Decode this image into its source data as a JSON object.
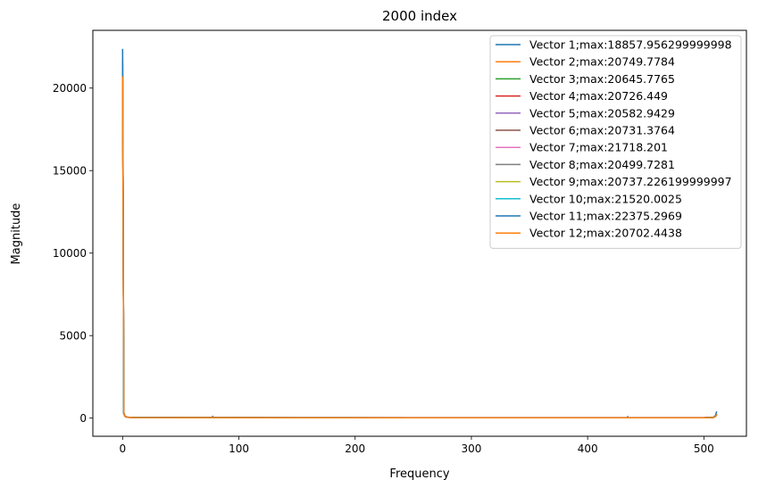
{
  "chart_data": {
    "type": "line",
    "title": "2000 index",
    "xlabel": "Frequency",
    "ylabel": "Magnitude",
    "xlim": [
      -25.6,
      536.6
    ],
    "ylim": [
      -1100,
      23500
    ],
    "x_ticks": [
      0,
      100,
      200,
      300,
      400,
      500
    ],
    "y_ticks": [
      0,
      5000,
      10000,
      15000,
      20000
    ],
    "grid": false,
    "legend_position": "top-right",
    "x": [
      0,
      0.5,
      1,
      2,
      3,
      5,
      10,
      50,
      77,
      77.5,
      78,
      150,
      250,
      350,
      434,
      434.5,
      435,
      500,
      508,
      510,
      511
    ],
    "series": [
      {
        "name": "Vector 1;max:18857.956299999998",
        "color": "#1f77b4",
        "values": [
          18857,
          12000,
          300,
          120,
          70,
          50,
          40,
          30,
          30,
          90,
          30,
          28,
          25,
          25,
          25,
          80,
          25,
          25,
          40,
          120,
          250
        ]
      },
      {
        "name": "Vector 2;max:20749.7784",
        "color": "#ff7f0e",
        "values": [
          20749,
          11800,
          280,
          115,
          68,
          48,
          38,
          28,
          28,
          70,
          28,
          26,
          24,
          24,
          24,
          60,
          24,
          24,
          38,
          110,
          230
        ]
      },
      {
        "name": "Vector 3;max:20645.7765",
        "color": "#2ca02c",
        "values": [
          20645,
          11700,
          270,
          110,
          66,
          47,
          37,
          27,
          27,
          60,
          27,
          25,
          23,
          23,
          23,
          55,
          23,
          23,
          36,
          100,
          220
        ]
      },
      {
        "name": "Vector 4;max:20726.449",
        "color": "#d62728",
        "values": [
          20726,
          11750,
          275,
          112,
          67,
          47,
          37,
          27,
          27,
          65,
          27,
          25,
          23,
          23,
          23,
          58,
          23,
          23,
          37,
          105,
          225
        ]
      },
      {
        "name": "Vector 5;max:20582.9429",
        "color": "#9467bd",
        "values": [
          20582,
          11650,
          268,
          108,
          65,
          46,
          36,
          26,
          26,
          62,
          26,
          24,
          22,
          22,
          22,
          54,
          22,
          22,
          35,
          98,
          215
        ]
      },
      {
        "name": "Vector 6;max:20731.3764",
        "color": "#8c564b",
        "values": [
          20731,
          11760,
          276,
          113,
          67,
          47,
          37,
          27,
          27,
          66,
          27,
          25,
          23,
          23,
          23,
          57,
          23,
          23,
          37,
          104,
          224
        ]
      },
      {
        "name": "Vector 7;max:21718.201",
        "color": "#e377c2",
        "values": [
          21718,
          12300,
          310,
          125,
          72,
          52,
          41,
          31,
          31,
          95,
          31,
          29,
          26,
          26,
          26,
          85,
          26,
          26,
          42,
          125,
          260
        ]
      },
      {
        "name": "Vector 8;max:20499.7281",
        "color": "#7f7f7f",
        "values": [
          20499,
          11600,
          265,
          107,
          64,
          45,
          35,
          25,
          25,
          60,
          25,
          23,
          21,
          21,
          21,
          52,
          21,
          21,
          34,
          96,
          210
        ]
      },
      {
        "name": "Vector 9;max:20737.226199999997",
        "color": "#bcbd22",
        "values": [
          20737,
          11770,
          277,
          113,
          67,
          47,
          37,
          27,
          27,
          66,
          27,
          25,
          23,
          23,
          23,
          57,
          23,
          23,
          37,
          104,
          226
        ]
      },
      {
        "name": "Vector 10;max:21520.0025",
        "color": "#17becf",
        "values": [
          21520,
          12200,
          305,
          122,
          71,
          51,
          40,
          30,
          30,
          92,
          30,
          28,
          25,
          25,
          25,
          82,
          25,
          25,
          41,
          122,
          255
        ]
      },
      {
        "name": "Vector 11;max:22375.2969",
        "color": "#1f77b4",
        "values": [
          22375,
          12600,
          330,
          130,
          75,
          54,
          43,
          33,
          33,
          110,
          33,
          30,
          27,
          27,
          27,
          90,
          27,
          27,
          45,
          160,
          400
        ]
      },
      {
        "name": "Vector 12;max:20702.4438",
        "color": "#ff7f0e",
        "values": [
          20702,
          11740,
          274,
          111,
          66,
          47,
          37,
          27,
          27,
          64,
          27,
          25,
          23,
          23,
          23,
          56,
          23,
          23,
          37,
          102,
          222
        ]
      }
    ]
  }
}
